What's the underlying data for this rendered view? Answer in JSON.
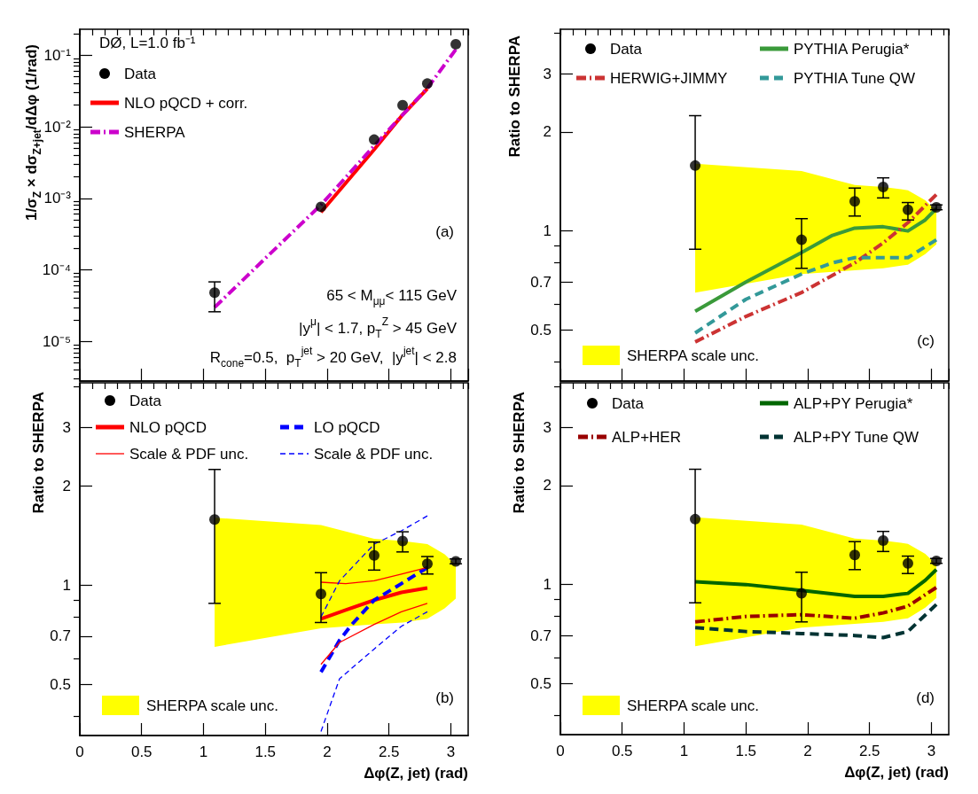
{
  "chart_data": [
    {
      "type": "scatter",
      "ylabel": "1/σ$_{Z}$ × dσ$_{Z+jet}$/dΔφ (1/rad)",
      "annotations": [
        "DØ, L=1.0 fb⁻¹",
        "65 < M$_{μμ}$< 115 GeV",
        "|y$^{μ}$| < 1.7, p$_{T}$$^{Z}$ > 45 GeV",
        "R$_{cone}$=0.5,  p$_{T}$$^{jet}$ > 20 GeV,  |y$^{jet}$| < 2.8",
        "(a)"
      ],
      "log": "y",
      "tick_labels": "y",
      "legend": "top left",
      "xlim": [
        0,
        3.14
      ],
      "xticks": [
        0,
        {
          "value": 0.1,
          "label": null
        },
        {
          "value": 0.2,
          "label": null
        },
        {
          "value": 0.3,
          "label": null
        },
        {
          "value": 0.4,
          "label": null
        },
        0.5,
        {
          "value": 0.6,
          "label": null
        },
        {
          "value": 0.7,
          "label": null
        },
        {
          "value": 0.8,
          "label": null
        },
        {
          "value": 0.9,
          "label": null
        },
        1,
        {
          "value": 1.1,
          "label": null
        },
        {
          "value": 1.2,
          "label": null
        },
        {
          "value": 1.3,
          "label": null
        },
        {
          "value": 1.4,
          "label": null
        },
        1.5,
        {
          "value": 1.6,
          "label": null
        },
        {
          "value": 1.7,
          "label": null
        },
        {
          "value": 1.8,
          "label": null
        },
        {
          "value": 1.9,
          "label": null
        },
        2,
        {
          "value": 2.1,
          "label": null
        },
        {
          "value": 2.2,
          "label": null
        },
        {
          "value": 2.3,
          "label": null
        },
        {
          "value": 2.4,
          "label": null
        },
        2.5,
        {
          "value": 2.6,
          "label": null
        },
        {
          "value": 2.7,
          "label": null
        },
        {
          "value": 2.8,
          "label": null
        },
        {
          "value": 2.9,
          "label": null
        },
        3,
        {
          "value": 3.1,
          "label": null
        }
      ],
      "ylim": [
        2.8e-06,
        0.23
      ],
      "yticks": [
        {
          "value": 3e-06,
          "label": null
        },
        {
          "value": 4e-06,
          "label": null
        },
        {
          "value": 5e-06,
          "label": null
        },
        {
          "value": 6e-06,
          "label": null
        },
        {
          "value": 7e-06,
          "label": null
        },
        {
          "value": 8e-06,
          "label": null
        },
        {
          "value": 9e-06,
          "label": null
        },
        {
          "value": 1e-05,
          "label": "10⁻⁵"
        },
        {
          "value": 2e-05,
          "label": null
        },
        {
          "value": 3e-05,
          "label": null
        },
        {
          "value": 4e-05,
          "label": null
        },
        {
          "value": 5e-05,
          "label": null
        },
        {
          "value": 6e-05,
          "label": null
        },
        {
          "value": 7e-05,
          "label": null
        },
        {
          "value": 8e-05,
          "label": null
        },
        {
          "value": 9e-05,
          "label": null
        },
        {
          "value": 0.0001,
          "label": "10⁻⁴"
        },
        {
          "value": 0.0002,
          "label": null
        },
        {
          "value": 0.0003,
          "label": null
        },
        {
          "value": 0.0004,
          "label": null
        },
        {
          "value": 0.0005,
          "label": null
        },
        {
          "value": 0.0006,
          "label": null
        },
        {
          "value": 0.0007,
          "label": null
        },
        {
          "value": 0.0008,
          "label": null
        },
        {
          "value": 0.0009,
          "label": null
        },
        {
          "value": 0.001,
          "label": "10⁻³"
        },
        {
          "value": 0.002,
          "label": null
        },
        {
          "value": 0.003,
          "label": null
        },
        {
          "value": 0.004,
          "label": null
        },
        {
          "value": 0.005,
          "label": null
        },
        {
          "value": 0.006,
          "label": null
        },
        {
          "value": 0.007,
          "label": null
        },
        {
          "value": 0.008,
          "label": null
        },
        {
          "value": 0.009,
          "label": null
        },
        {
          "value": 0.01,
          "label": "10⁻²"
        },
        {
          "value": 0.02,
          "label": null
        },
        {
          "value": 0.03,
          "label": null
        },
        {
          "value": 0.04,
          "label": null
        },
        {
          "value": 0.05,
          "label": null
        },
        {
          "value": 0.06,
          "label": null
        },
        {
          "value": 0.07,
          "label": null
        },
        {
          "value": 0.08,
          "label": null
        },
        {
          "value": 0.09,
          "label": null
        },
        {
          "value": 0.1,
          "label": "10⁻¹"
        },
        {
          "value": 0.2,
          "label": null
        }
      ],
      "series": [
        {
          "name": "Data",
          "marker": "circle",
          "color": "#000000",
          "x": [
            1.09,
            1.95,
            2.38,
            2.61,
            2.81,
            3.04
          ],
          "values": [
            4.8e-05,
            0.00076,
            0.0066,
            0.02,
            0.04,
            0.142
          ],
          "errors": [
            [
              2.6e-05,
              6.8e-05
            ],
            null,
            null,
            null,
            null,
            null
          ]
        },
        {
          "name": "NLO pQCD + corr.",
          "type": "line",
          "color": "#ff0000",
          "line_style": "solid",
          "x": [
            1.95,
            2.38,
            2.6,
            2.81
          ],
          "values": [
            0.00064,
            0.0048,
            0.014,
            0.034
          ]
        },
        {
          "name": "SHERPA",
          "type": "line",
          "color": "#cc00cc",
          "line_style": "dashdot",
          "x": [
            1.09,
            1.5,
            1.95,
            2.38,
            2.61,
            2.81,
            3.04
          ],
          "values": [
            3e-05,
            0.000145,
            0.00081,
            0.0054,
            0.0147,
            0.0345,
            0.12
          ]
        }
      ]
    },
    {
      "type": "scatter",
      "ylabel": "Ratio to SHERPA",
      "xlabel": "Δφ(Z, jet) (rad)",
      "annotations": [
        "(b)"
      ],
      "log": "y",
      "legend": "top",
      "xlim": [
        0,
        3.14
      ],
      "xticks": [
        0,
        {
          "value": 0.1,
          "label": null
        },
        {
          "value": 0.2,
          "label": null
        },
        {
          "value": 0.3,
          "label": null
        },
        {
          "value": 0.4,
          "label": null
        },
        0.5,
        {
          "value": 0.6,
          "label": null
        },
        {
          "value": 0.7,
          "label": null
        },
        {
          "value": 0.8,
          "label": null
        },
        {
          "value": 0.9,
          "label": null
        },
        1,
        {
          "value": 1.1,
          "label": null
        },
        {
          "value": 1.2,
          "label": null
        },
        {
          "value": 1.3,
          "label": null
        },
        {
          "value": 1.4,
          "label": null
        },
        1.5,
        {
          "value": 1.6,
          "label": null
        },
        {
          "value": 1.7,
          "label": null
        },
        {
          "value": 1.8,
          "label": null
        },
        {
          "value": 1.9,
          "label": null
        },
        2,
        {
          "value": 2.1,
          "label": null
        },
        {
          "value": 2.2,
          "label": null
        },
        {
          "value": 2.3,
          "label": null
        },
        {
          "value": 2.4,
          "label": null
        },
        2.5,
        {
          "value": 2.6,
          "label": null
        },
        {
          "value": 2.7,
          "label": null
        },
        {
          "value": 2.8,
          "label": null
        },
        {
          "value": 2.9,
          "label": null
        },
        3,
        {
          "value": 3.1,
          "label": null
        }
      ],
      "ylim": [
        0.35,
        4.1
      ],
      "yticks": [
        {
          "value": 0.4,
          "label": null
        },
        0.5,
        {
          "value": 0.6,
          "label": null
        },
        0.7,
        {
          "value": 0.8,
          "label": null
        },
        {
          "value": 0.9,
          "label": null
        },
        1,
        2,
        3,
        {
          "value": 4,
          "label": null
        }
      ],
      "series": [
        {
          "name": "SHERPA scale unc.",
          "type": "area",
          "color": "#ffff00",
          "x": [
            1.09,
            1.95,
            2.38,
            2.61,
            2.81,
            2.95,
            3.04
          ],
          "values": [
            null,
            null,
            null,
            null,
            null,
            null,
            null
          ],
          "lower": [
            0.65,
            0.74,
            0.76,
            0.77,
            0.79,
            0.85,
            0.91
          ],
          "upper": [
            1.6,
            1.52,
            1.38,
            1.36,
            1.33,
            1.24,
            1.15
          ]
        },
        {
          "name": "Data",
          "marker": "circle",
          "color": "#000000",
          "x": [
            1.09,
            1.95,
            2.38,
            2.61,
            2.81,
            3.04
          ],
          "values": [
            1.58,
            0.94,
            1.23,
            1.36,
            1.16,
            1.18
          ],
          "errors": [
            [
              0.88,
              2.24
            ],
            [
              0.77,
              1.09
            ],
            [
              1.11,
              1.35
            ],
            [
              1.26,
              1.45
            ],
            [
              1.08,
              1.22
            ],
            [
              1.16,
              1.2
            ]
          ]
        },
        {
          "name": "NLO pQCD",
          "type": "line",
          "color": "#ff0000",
          "line_style": "solid",
          "x": [
            1.95,
            2.15,
            2.38,
            2.6,
            2.81
          ],
          "values": [
            0.79,
            0.84,
            0.9,
            0.95,
            0.98
          ]
        },
        {
          "name": "LO pQCD",
          "type": "line",
          "color": "#0000ff",
          "line_style": "dashed",
          "x": [
            1.95,
            2.1,
            2.2,
            2.38,
            2.6,
            2.81
          ],
          "values": [
            0.545,
            0.68,
            0.76,
            0.9,
            1.01,
            1.13
          ]
        },
        {
          "name": "Scale & PDF unc.",
          "type": "line",
          "color": "#ff0000",
          "line_style": "solid",
          "x": [
            1.95,
            2.15,
            2.38,
            2.6,
            2.81
          ],
          "values": [
            1.02,
            1.01,
            1.03,
            1.08,
            1.13
          ]
        },
        {
          "name": "Scale & PDF unc.",
          "type": "line",
          "color": "#0000ff",
          "line_style": "dashed",
          "x": [
            1.95,
            2.1,
            2.38,
            2.6,
            2.81
          ],
          "values": [
            0.8,
            1.03,
            1.33,
            1.46,
            1.62
          ]
        },
        {
          "type": "line",
          "color": "#ff0000",
          "line_style": "solid",
          "x": [
            1.95,
            2.1,
            2.38,
            2.6,
            2.81
          ],
          "values": [
            0.575,
            0.67,
            0.76,
            0.83,
            0.88
          ]
        },
        {
          "type": "line",
          "color": "#0000ff",
          "line_style": "dashed",
          "x": [
            1.95,
            2.1,
            2.38,
            2.6,
            2.81
          ],
          "values": [
            0.36,
            0.52,
            0.64,
            0.75,
            0.83
          ]
        }
      ]
    },
    {
      "type": "scatter",
      "ylabel": "Ratio to SHERPA",
      "annotations": [
        "(c)"
      ],
      "log": "y",
      "tick_labels": "y",
      "legend": "top",
      "xlim": [
        0,
        3.14
      ],
      "xticks": [
        0,
        {
          "value": 0.1,
          "label": null
        },
        {
          "value": 0.2,
          "label": null
        },
        {
          "value": 0.3,
          "label": null
        },
        {
          "value": 0.4,
          "label": null
        },
        0.5,
        {
          "value": 0.6,
          "label": null
        },
        {
          "value": 0.7,
          "label": null
        },
        {
          "value": 0.8,
          "label": null
        },
        {
          "value": 0.9,
          "label": null
        },
        1,
        {
          "value": 1.1,
          "label": null
        },
        {
          "value": 1.2,
          "label": null
        },
        {
          "value": 1.3,
          "label": null
        },
        {
          "value": 1.4,
          "label": null
        },
        1.5,
        {
          "value": 1.6,
          "label": null
        },
        {
          "value": 1.7,
          "label": null
        },
        {
          "value": 1.8,
          "label": null
        },
        {
          "value": 1.9,
          "label": null
        },
        2,
        {
          "value": 2.1,
          "label": null
        },
        {
          "value": 2.2,
          "label": null
        },
        {
          "value": 2.3,
          "label": null
        },
        {
          "value": 2.4,
          "label": null
        },
        2.5,
        {
          "value": 2.6,
          "label": null
        },
        {
          "value": 2.7,
          "label": null
        },
        {
          "value": 2.8,
          "label": null
        },
        {
          "value": 2.9,
          "label": null
        },
        3,
        {
          "value": 3.1,
          "label": null
        }
      ],
      "ylim": [
        0.35,
        4.1
      ],
      "yticks": [
        {
          "value": 0.4,
          "label": null
        },
        0.5,
        {
          "value": 0.6,
          "label": null
        },
        0.7,
        {
          "value": 0.8,
          "label": null
        },
        {
          "value": 0.9,
          "label": null
        },
        1,
        2,
        3,
        {
          "value": 4,
          "label": null
        }
      ],
      "series": [
        {
          "name": "SHERPA scale unc.",
          "type": "area",
          "color": "#ffff00",
          "x": [
            1.09,
            1.95,
            2.38,
            2.61,
            2.81,
            2.95,
            3.04
          ],
          "values": [
            null,
            null,
            null,
            null,
            null,
            null,
            null
          ],
          "lower": [
            0.65,
            0.74,
            0.76,
            0.77,
            0.79,
            0.85,
            0.91
          ],
          "upper": [
            1.6,
            1.52,
            1.38,
            1.36,
            1.33,
            1.24,
            1.15
          ]
        },
        {
          "name": "Data",
          "marker": "circle",
          "color": "#000000",
          "x": [
            1.09,
            1.95,
            2.38,
            2.61,
            2.81,
            3.04
          ],
          "values": [
            1.58,
            0.94,
            1.23,
            1.36,
            1.16,
            1.18
          ],
          "errors": [
            [
              0.88,
              2.24
            ],
            [
              0.77,
              1.09
            ],
            [
              1.11,
              1.35
            ],
            [
              1.26,
              1.45
            ],
            [
              1.08,
              1.22
            ],
            [
              1.16,
              1.2
            ]
          ]
        },
        {
          "name": "PYTHIA Perugia*",
          "type": "line",
          "color": "#3a9a3a",
          "line_style": "solid",
          "x": [
            1.09,
            1.5,
            1.95,
            2.2,
            2.38,
            2.61,
            2.81,
            2.95,
            3.04
          ],
          "values": [
            0.57,
            0.7,
            0.86,
            0.97,
            1.02,
            1.03,
            1.0,
            1.08,
            1.17
          ]
        },
        {
          "name": "HERWIG+JIMMY",
          "type": "line",
          "color": "#cc3333",
          "line_style": "dashdot",
          "x": [
            1.09,
            1.5,
            1.95,
            2.38,
            2.61,
            2.81,
            3.04
          ],
          "values": [
            0.46,
            0.55,
            0.65,
            0.8,
            0.92,
            1.06,
            1.29
          ]
        },
        {
          "name": "PYTHIA Tune QW",
          "type": "line",
          "color": "#339999",
          "line_style": "dashed",
          "x": [
            1.09,
            1.5,
            1.95,
            2.2,
            2.38,
            2.61,
            2.81,
            3.04
          ],
          "values": [
            0.49,
            0.62,
            0.74,
            0.8,
            0.83,
            0.83,
            0.83,
            0.94
          ]
        }
      ]
    },
    {
      "type": "scatter",
      "ylabel": "Ratio to SHERPA",
      "xlabel": "Δφ(Z, jet) (rad)",
      "annotations": [
        "(d)"
      ],
      "log": "y",
      "legend": "top",
      "xlim": [
        0,
        3.14
      ],
      "xticks": [
        0,
        {
          "value": 0.1,
          "label": null
        },
        {
          "value": 0.2,
          "label": null
        },
        {
          "value": 0.3,
          "label": null
        },
        {
          "value": 0.4,
          "label": null
        },
        0.5,
        {
          "value": 0.6,
          "label": null
        },
        {
          "value": 0.7,
          "label": null
        },
        {
          "value": 0.8,
          "label": null
        },
        {
          "value": 0.9,
          "label": null
        },
        1,
        {
          "value": 1.1,
          "label": null
        },
        {
          "value": 1.2,
          "label": null
        },
        {
          "value": 1.3,
          "label": null
        },
        {
          "value": 1.4,
          "label": null
        },
        1.5,
        {
          "value": 1.6,
          "label": null
        },
        {
          "value": 1.7,
          "label": null
        },
        {
          "value": 1.8,
          "label": null
        },
        {
          "value": 1.9,
          "label": null
        },
        2,
        {
          "value": 2.1,
          "label": null
        },
        {
          "value": 2.2,
          "label": null
        },
        {
          "value": 2.3,
          "label": null
        },
        {
          "value": 2.4,
          "label": null
        },
        2.5,
        {
          "value": 2.6,
          "label": null
        },
        {
          "value": 2.7,
          "label": null
        },
        {
          "value": 2.8,
          "label": null
        },
        {
          "value": 2.9,
          "label": null
        },
        3,
        {
          "value": 3.1,
          "label": null
        }
      ],
      "ylim": [
        0.35,
        4.1
      ],
      "yticks": [
        {
          "value": 0.4,
          "label": null
        },
        0.5,
        {
          "value": 0.6,
          "label": null
        },
        0.7,
        {
          "value": 0.8,
          "label": null
        },
        {
          "value": 0.9,
          "label": null
        },
        1,
        2,
        3,
        {
          "value": 4,
          "label": null
        }
      ],
      "series": [
        {
          "name": "SHERPA scale unc.",
          "type": "area",
          "color": "#ffff00",
          "x": [
            1.09,
            1.95,
            2.38,
            2.61,
            2.81,
            2.95,
            3.04
          ],
          "values": [
            null,
            null,
            null,
            null,
            null,
            null,
            null
          ],
          "lower": [
            0.65,
            0.74,
            0.76,
            0.77,
            0.79,
            0.85,
            0.91
          ],
          "upper": [
            1.6,
            1.52,
            1.38,
            1.36,
            1.33,
            1.24,
            1.15
          ]
        },
        {
          "name": "Data",
          "marker": "circle",
          "color": "#000000",
          "x": [
            1.09,
            1.95,
            2.38,
            2.61,
            2.81,
            3.04
          ],
          "values": [
            1.58,
            0.94,
            1.23,
            1.36,
            1.16,
            1.18
          ],
          "errors": [
            [
              0.88,
              2.24
            ],
            [
              0.77,
              1.09
            ],
            [
              1.11,
              1.35
            ],
            [
              1.26,
              1.45
            ],
            [
              1.08,
              1.22
            ],
            [
              1.16,
              1.2
            ]
          ]
        },
        {
          "name": "ALP+PY Perugia*",
          "type": "line",
          "color": "#006600",
          "line_style": "solid",
          "x": [
            1.09,
            1.5,
            1.95,
            2.38,
            2.61,
            2.81,
            2.95,
            3.04
          ],
          "values": [
            1.02,
            1.0,
            0.96,
            0.92,
            0.92,
            0.94,
            1.03,
            1.11
          ]
        },
        {
          "name": "ALP+HER",
          "type": "line",
          "color": "#990000",
          "line_style": "dashdot",
          "x": [
            1.09,
            1.5,
            1.95,
            2.38,
            2.61,
            2.81,
            3.04
          ],
          "values": [
            0.77,
            0.8,
            0.81,
            0.79,
            0.82,
            0.86,
            0.98
          ]
        },
        {
          "name": "ALP+PY Tune QW",
          "type": "line",
          "color": "#003333",
          "line_style": "dashed",
          "x": [
            1.09,
            1.5,
            1.95,
            2.38,
            2.61,
            2.81,
            3.04
          ],
          "values": [
            0.74,
            0.72,
            0.71,
            0.7,
            0.69,
            0.72,
            0.87
          ]
        }
      ]
    }
  ]
}
